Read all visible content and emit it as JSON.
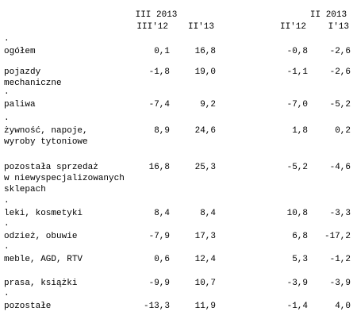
{
  "table": {
    "group_headers": [
      "III 2013",
      "II 2013"
    ],
    "column_headers": [
      "III'12",
      "II'13",
      "II'12",
      "I'13"
    ],
    "rows": [
      {
        "dot": ".",
        "label": [
          "ogółem"
        ],
        "cells": [
          "0,1",
          "16,8",
          "-0,8",
          "-2,6"
        ]
      },
      {
        "label": [
          "pojazdy",
          "mechaniczne"
        ],
        "cells": [
          "-1,8",
          "19,0",
          "-1,1",
          "-2,6"
        ]
      },
      {
        "dot": ".",
        "label": [
          "paliwa"
        ],
        "cells": [
          "-7,4",
          "9,2",
          "-7,0",
          "-5,2"
        ]
      },
      {
        "dot": ".",
        "label": [
          "żywność, napoje,",
          "wyroby tytoniowe"
        ],
        "cells": [
          "8,9",
          "24,6",
          "1,8",
          "0,2"
        ]
      },
      {
        "label": [
          "pozostała sprzedaż",
          "w niewyspecjalizowanych",
          "sklepach"
        ],
        "cells": [
          "16,8",
          "25,3",
          "-5,2",
          "-4,6"
        ]
      },
      {
        "dot": ".",
        "label": [
          "leki, kosmetyki"
        ],
        "cells": [
          "8,4",
          "8,4",
          "10,8",
          "-3,3"
        ]
      },
      {
        "dot": ".",
        "label": [
          "odzież, obuwie"
        ],
        "cells": [
          "-7,9",
          "17,3",
          "6,8",
          "-17,2"
        ]
      },
      {
        "dot": ".",
        "label": [
          "meble, AGD, RTV"
        ],
        "cells": [
          "0,6",
          "12,4",
          "5,3",
          "-1,2"
        ]
      },
      {
        "label": [
          "prasa, książki"
        ],
        "cells": [
          "-9,9",
          "10,7",
          "-3,9",
          "-3,9"
        ]
      },
      {
        "dot": ".",
        "label": [
          "pozostałe"
        ],
        "cells": [
          "-13,3",
          "11,9",
          "-1,4",
          "4,0"
        ]
      }
    ]
  }
}
